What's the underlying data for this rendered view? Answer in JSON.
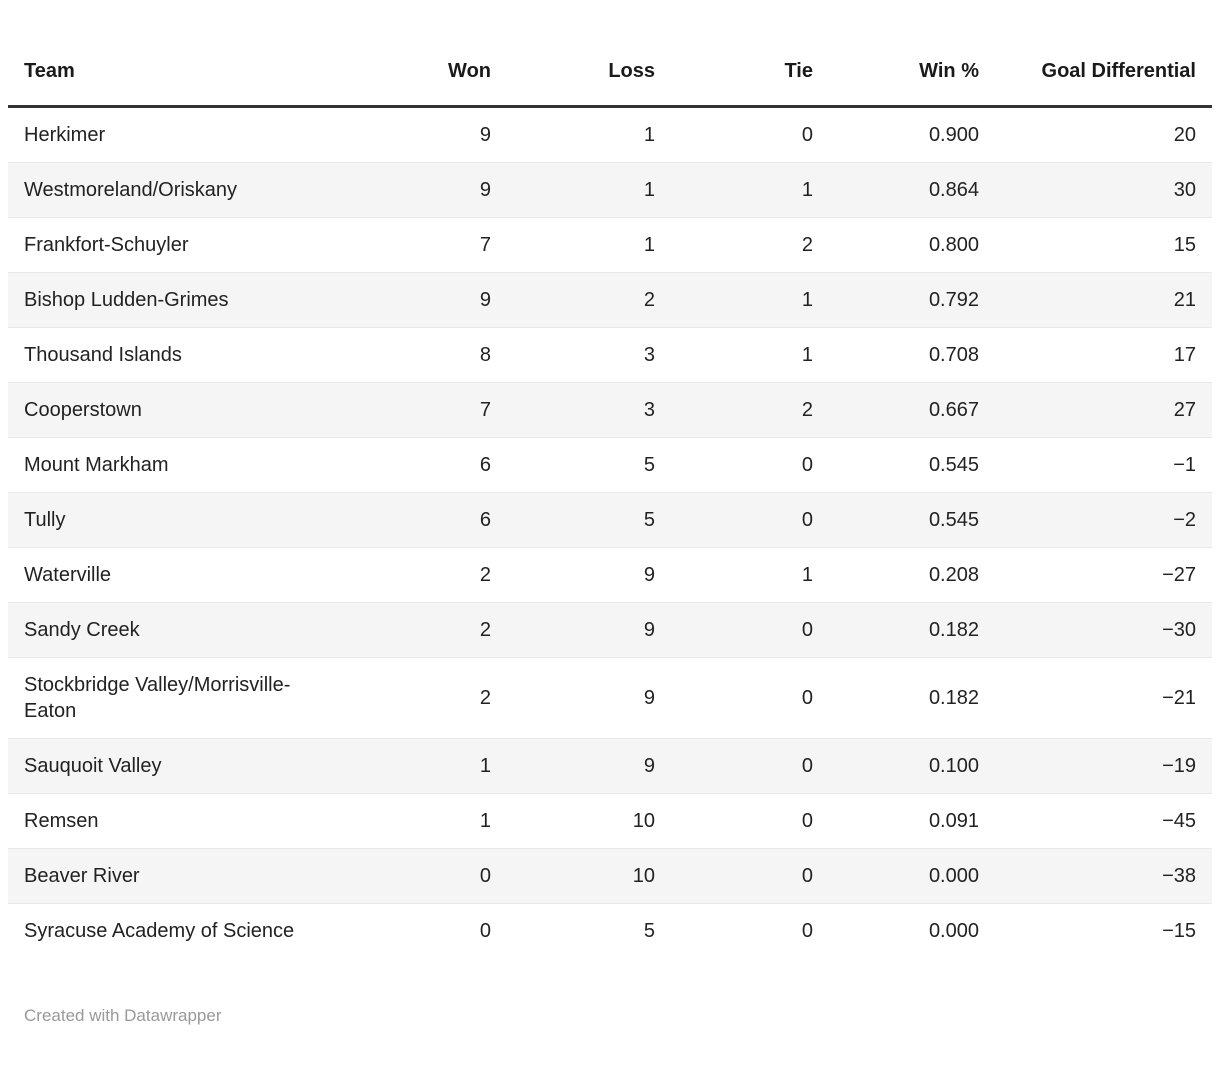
{
  "table": {
    "columns": [
      {
        "key": "team",
        "label": "Team",
        "align": "left"
      },
      {
        "key": "won",
        "label": "Won",
        "align": "right"
      },
      {
        "key": "loss",
        "label": "Loss",
        "align": "right"
      },
      {
        "key": "tie",
        "label": "Tie",
        "align": "right"
      },
      {
        "key": "win_pct",
        "label": "Win %",
        "align": "right"
      },
      {
        "key": "goal_diff",
        "label": "Goal Differential",
        "align": "right"
      }
    ],
    "rows": [
      {
        "team": "Herkimer",
        "won": "9",
        "loss": "1",
        "tie": "0",
        "win_pct": "0.900",
        "goal_diff": "20"
      },
      {
        "team": "Westmoreland/Oriskany",
        "won": "9",
        "loss": "1",
        "tie": "1",
        "win_pct": "0.864",
        "goal_diff": "30"
      },
      {
        "team": "Frankfort-Schuyler",
        "won": "7",
        "loss": "1",
        "tie": "2",
        "win_pct": "0.800",
        "goal_diff": "15"
      },
      {
        "team": "Bishop Ludden-Grimes",
        "won": "9",
        "loss": "2",
        "tie": "1",
        "win_pct": "0.792",
        "goal_diff": "21"
      },
      {
        "team": "Thousand Islands",
        "won": "8",
        "loss": "3",
        "tie": "1",
        "win_pct": "0.708",
        "goal_diff": "17"
      },
      {
        "team": "Cooperstown",
        "won": "7",
        "loss": "3",
        "tie": "2",
        "win_pct": "0.667",
        "goal_diff": "27"
      },
      {
        "team": "Mount Markham",
        "won": "6",
        "loss": "5",
        "tie": "0",
        "win_pct": "0.545",
        "goal_diff": "−1"
      },
      {
        "team": "Tully",
        "won": "6",
        "loss": "5",
        "tie": "0",
        "win_pct": "0.545",
        "goal_diff": "−2"
      },
      {
        "team": "Waterville",
        "won": "2",
        "loss": "9",
        "tie": "1",
        "win_pct": "0.208",
        "goal_diff": "−27"
      },
      {
        "team": "Sandy Creek",
        "won": "2",
        "loss": "9",
        "tie": "0",
        "win_pct": "0.182",
        "goal_diff": "−30"
      },
      {
        "team": "Stockbridge Valley/Morrisville-Eaton",
        "won": "2",
        "loss": "9",
        "tie": "0",
        "win_pct": "0.182",
        "goal_diff": "−21"
      },
      {
        "team": "Sauquoit Valley",
        "won": "1",
        "loss": "9",
        "tie": "0",
        "win_pct": "0.100",
        "goal_diff": "−19"
      },
      {
        "team": "Remsen",
        "won": "1",
        "loss": "10",
        "tie": "0",
        "win_pct": "0.091",
        "goal_diff": "−45"
      },
      {
        "team": "Beaver River",
        "won": "0",
        "loss": "10",
        "tie": "0",
        "win_pct": "0.000",
        "goal_diff": "−38"
      },
      {
        "team": "Syracuse Academy of Science",
        "won": "0",
        "loss": "5",
        "tie": "0",
        "win_pct": "0.000",
        "goal_diff": "−15"
      }
    ]
  },
  "footer": {
    "credit": "Created with Datawrapper"
  },
  "colors": {
    "text": "#222222",
    "header_text": "#1a1a1a",
    "header_border": "#333333",
    "row_stripe": "#f5f5f5",
    "row_border": "#e8e8e8",
    "credit_text": "#999999",
    "background": "#ffffff"
  },
  "chart_data": {
    "type": "table",
    "title": "",
    "columns": [
      "Team",
      "Won",
      "Loss",
      "Tie",
      "Win %",
      "Goal Differential"
    ],
    "rows": [
      [
        "Herkimer",
        9,
        1,
        0,
        0.9,
        20
      ],
      [
        "Westmoreland/Oriskany",
        9,
        1,
        1,
        0.864,
        30
      ],
      [
        "Frankfort-Schuyler",
        7,
        1,
        2,
        0.8,
        15
      ],
      [
        "Bishop Ludden-Grimes",
        9,
        2,
        1,
        0.792,
        21
      ],
      [
        "Thousand Islands",
        8,
        3,
        1,
        0.708,
        17
      ],
      [
        "Cooperstown",
        7,
        3,
        2,
        0.667,
        27
      ],
      [
        "Mount Markham",
        6,
        5,
        0,
        0.545,
        -1
      ],
      [
        "Tully",
        6,
        5,
        0,
        0.545,
        -2
      ],
      [
        "Waterville",
        2,
        9,
        1,
        0.208,
        -27
      ],
      [
        "Sandy Creek",
        2,
        9,
        0,
        0.182,
        -30
      ],
      [
        "Stockbridge Valley/Morrisville-Eaton",
        2,
        9,
        0,
        0.182,
        -21
      ],
      [
        "Sauquoit Valley",
        1,
        9,
        0,
        0.1,
        -19
      ],
      [
        "Remsen",
        1,
        10,
        0,
        0.091,
        -45
      ],
      [
        "Beaver River",
        0,
        10,
        0,
        0.0,
        -38
      ],
      [
        "Syracuse Academy of Science",
        0,
        5,
        0,
        0.0,
        -15
      ]
    ],
    "layout_hints": {
      "zebra_striping": true,
      "numeric_columns_right_aligned": true,
      "header_rule": "3px solid dark"
    }
  }
}
